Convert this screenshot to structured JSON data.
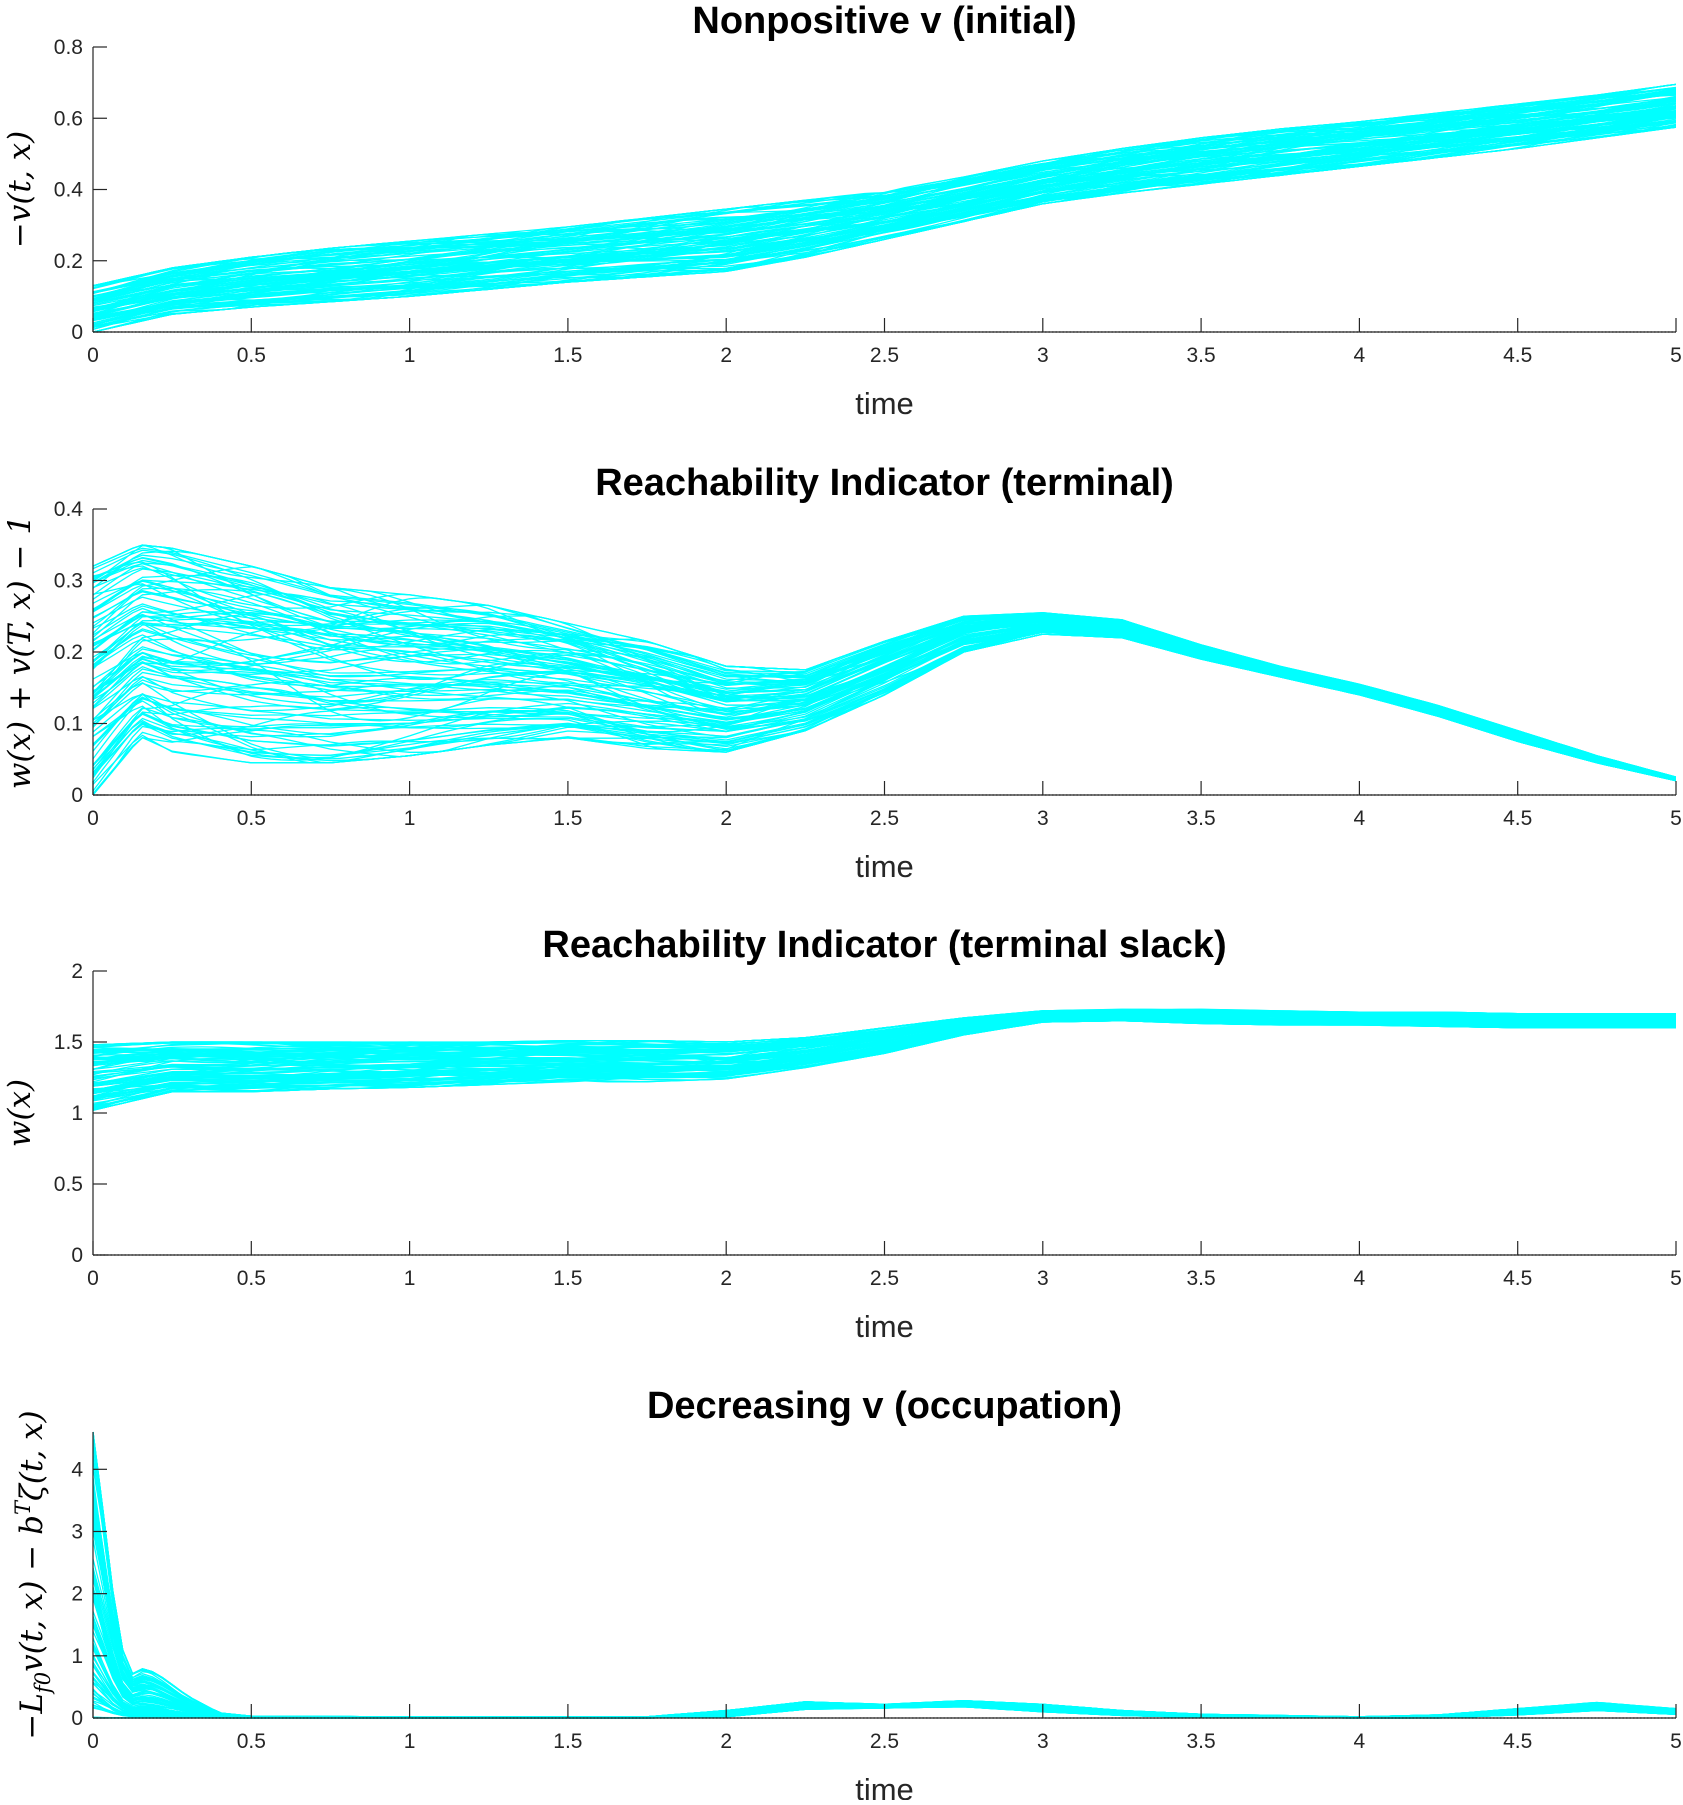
{
  "figure": {
    "curve_color": "#00ffff",
    "axis_color": "#262626",
    "curve_count_per_panel": 100,
    "curve_note": "Each panel overlays ~100 cyan trajectories; bands summarized by lower/upper envelopes per time sample."
  },
  "chart_data": [
    {
      "type": "line",
      "title": "Nonpositive v (initial)",
      "xlabel": "time",
      "ylabel": "−v(t, x)",
      "xlim": [
        0,
        5
      ],
      "ylim": [
        0,
        0.8
      ],
      "xticks": [
        "0",
        "0.5",
        "1",
        "1.5",
        "2",
        "2.5",
        "3",
        "3.5",
        "4",
        "4.5",
        "5"
      ],
      "yticks": [
        "0",
        "0.2",
        "0.4",
        "0.6",
        "0.8"
      ],
      "grid": false,
      "dotted_baseline": 0,
      "x": [
        0,
        0.25,
        0.5,
        0.75,
        1,
        1.25,
        1.5,
        1.75,
        2,
        2.25,
        2.5,
        2.75,
        3,
        3.25,
        3.5,
        3.75,
        4,
        4.25,
        4.5,
        4.75,
        5
      ],
      "lower": [
        0.0,
        0.05,
        0.07,
        0.085,
        0.1,
        0.12,
        0.14,
        0.155,
        0.17,
        0.21,
        0.26,
        0.31,
        0.36,
        0.39,
        0.415,
        0.44,
        0.465,
        0.49,
        0.515,
        0.545,
        0.575
      ],
      "upper": [
        0.13,
        0.18,
        0.21,
        0.235,
        0.255,
        0.275,
        0.295,
        0.32,
        0.345,
        0.37,
        0.395,
        0.435,
        0.48,
        0.515,
        0.545,
        0.57,
        0.59,
        0.615,
        0.64,
        0.665,
        0.695
      ]
    },
    {
      "type": "line",
      "title": "Reachability Indicator (terminal)",
      "xlabel": "time",
      "ylabel": "w(x) + v(T, x) − 1",
      "xlim": [
        0,
        5
      ],
      "ylim": [
        0,
        0.4
      ],
      "xticks": [
        "0",
        "0.5",
        "1",
        "1.5",
        "2",
        "2.5",
        "3",
        "3.5",
        "4",
        "4.5",
        "5"
      ],
      "yticks": [
        "0",
        "0.1",
        "0.2",
        "0.3",
        "0.4"
      ],
      "grid": false,
      "dotted_baseline": 0,
      "x": [
        0,
        0.15,
        0.25,
        0.5,
        0.75,
        1,
        1.25,
        1.5,
        1.75,
        2,
        2.25,
        2.5,
        2.75,
        3,
        3.25,
        3.5,
        3.75,
        4,
        4.25,
        4.5,
        4.75,
        5
      ],
      "lower": [
        0.0,
        0.08,
        0.06,
        0.045,
        0.045,
        0.055,
        0.07,
        0.08,
        0.065,
        0.06,
        0.09,
        0.14,
        0.2,
        0.225,
        0.22,
        0.19,
        0.165,
        0.14,
        0.11,
        0.075,
        0.045,
        0.02
      ],
      "upper": [
        0.32,
        0.35,
        0.345,
        0.32,
        0.29,
        0.28,
        0.265,
        0.24,
        0.215,
        0.18,
        0.175,
        0.215,
        0.25,
        0.255,
        0.245,
        0.21,
        0.18,
        0.155,
        0.125,
        0.09,
        0.055,
        0.025
      ]
    },
    {
      "type": "line",
      "title": "Reachability Indicator (terminal slack)",
      "xlabel": "time",
      "ylabel": "w(x)",
      "xlim": [
        0,
        5
      ],
      "ylim": [
        0,
        2
      ],
      "xticks": [
        "0",
        "0.5",
        "1",
        "1.5",
        "2",
        "2.5",
        "3",
        "3.5",
        "4",
        "4.5",
        "5"
      ],
      "yticks": [
        "0",
        "0.5",
        "1",
        "1.5",
        "2"
      ],
      "grid": false,
      "dotted_baseline": 0,
      "x": [
        0,
        0.25,
        0.5,
        0.75,
        1,
        1.25,
        1.5,
        1.75,
        2,
        2.25,
        2.5,
        2.75,
        3,
        3.25,
        3.5,
        3.75,
        4,
        4.25,
        4.5,
        4.75,
        5
      ],
      "lower": [
        1.02,
        1.15,
        1.15,
        1.17,
        1.18,
        1.2,
        1.22,
        1.22,
        1.24,
        1.32,
        1.42,
        1.55,
        1.64,
        1.65,
        1.63,
        1.62,
        1.62,
        1.61,
        1.6,
        1.6,
        1.6
      ],
      "upper": [
        1.48,
        1.5,
        1.5,
        1.5,
        1.5,
        1.5,
        1.51,
        1.51,
        1.5,
        1.53,
        1.6,
        1.67,
        1.72,
        1.73,
        1.73,
        1.72,
        1.71,
        1.71,
        1.7,
        1.7,
        1.7
      ]
    },
    {
      "type": "line",
      "title": "Decreasing v (occupation)",
      "xlabel": "time",
      "ylabel": "−L_{f0}v(t, x) − b^T ζ(t, x)",
      "ylabel_main": "−L",
      "ylabel_sub": "f0",
      "ylabel_rest": "v(t, x) − b",
      "ylabel_sup": "T",
      "ylabel_tail": "ζ(t, x)",
      "xlim": [
        0,
        5
      ],
      "ylim": [
        0,
        4.6
      ],
      "xticks": [
        "0",
        "0.5",
        "1",
        "1.5",
        "2",
        "2.5",
        "3",
        "3.5",
        "4",
        "4.5",
        "5"
      ],
      "yticks": [
        "0",
        "1",
        "2",
        "3",
        "4"
      ],
      "grid": false,
      "dotted_baseline": 0,
      "x": [
        0,
        0.04,
        0.08,
        0.12,
        0.16,
        0.2,
        0.3,
        0.4,
        0.5,
        1,
        1.5,
        1.75,
        2,
        2.25,
        2.5,
        2.75,
        3,
        3.25,
        3.5,
        4,
        4.25,
        4.5,
        4.75,
        5
      ],
      "lower": [
        0.0,
        0.0,
        0.0,
        0.0,
        0.0,
        0.0,
        0.0,
        0.0,
        0.0,
        0.0,
        0.0,
        0.0,
        0.02,
        0.14,
        0.16,
        0.18,
        0.1,
        0.04,
        0.01,
        0.0,
        0.0,
        0.05,
        0.12,
        0.06
      ],
      "upper": [
        4.6,
        3.0,
        1.3,
        0.7,
        0.8,
        0.72,
        0.35,
        0.08,
        0.03,
        0.02,
        0.02,
        0.02,
        0.12,
        0.26,
        0.22,
        0.28,
        0.22,
        0.12,
        0.06,
        0.02,
        0.05,
        0.15,
        0.25,
        0.15
      ]
    }
  ]
}
